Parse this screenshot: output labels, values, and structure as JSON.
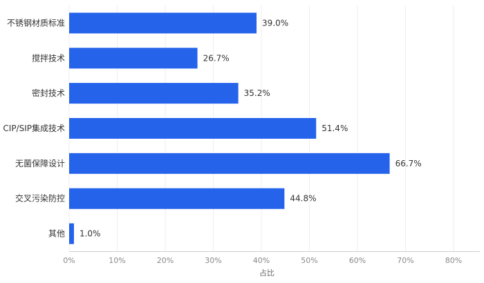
{
  "chart_data": {
    "type": "bar",
    "orientation": "horizontal",
    "categories": [
      "不锈钢材质标准",
      "搅拌技术",
      "密封技术",
      "CIP/SIP集成技术",
      "无菌保障设计",
      "交叉污染防控",
      "其他"
    ],
    "values": [
      39.0,
      26.7,
      35.2,
      51.4,
      66.7,
      44.8,
      1.0
    ],
    "value_labels": [
      "39.0%",
      "26.7%",
      "35.2%",
      "51.4%",
      "66.7%",
      "44.8%",
      "1.0%"
    ],
    "xlabel": "占比",
    "xlim": [
      0,
      80
    ],
    "ticks": [
      0,
      10,
      20,
      30,
      40,
      50,
      60,
      70,
      80
    ],
    "tick_labels": [
      "0%",
      "10%",
      "20%",
      "30%",
      "40%",
      "50%",
      "60%",
      "70%",
      "80%"
    ],
    "grid": true,
    "bar_color": "#2563eb"
  }
}
